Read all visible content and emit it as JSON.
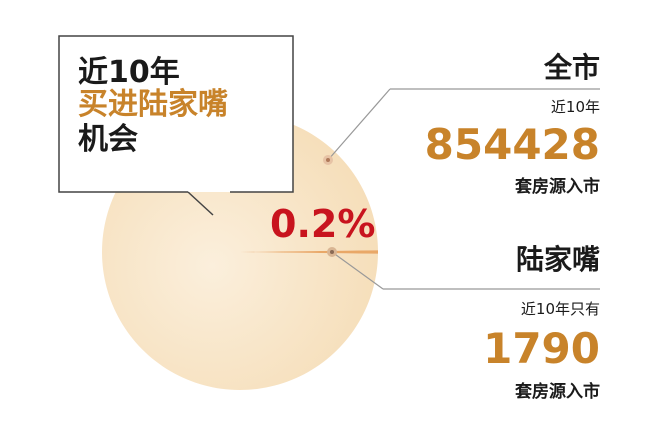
{
  "chart_data": {
    "type": "pie",
    "slices": [
      {
        "name": "全市",
        "value": 854428,
        "percent": 99.8
      },
      {
        "name": "陆家嘴",
        "value": 1790,
        "percent": 0.2
      }
    ],
    "slice_label": "0.2%"
  },
  "headline": {
    "line1": "近10年",
    "line2": "买进陆家嘴",
    "line3": "机会"
  },
  "city": {
    "title": "全市",
    "pre": "近10年",
    "number": "854428",
    "post": "套房源入市"
  },
  "ljz": {
    "title": "陆家嘴",
    "pre": "近10年只有",
    "number": "1790",
    "post": "套房源入市"
  },
  "colors": {
    "pie_main": "#f7e3c4",
    "pie_slice": "#e9a868",
    "accent": "#c8832a",
    "percent": "#c8141e"
  }
}
